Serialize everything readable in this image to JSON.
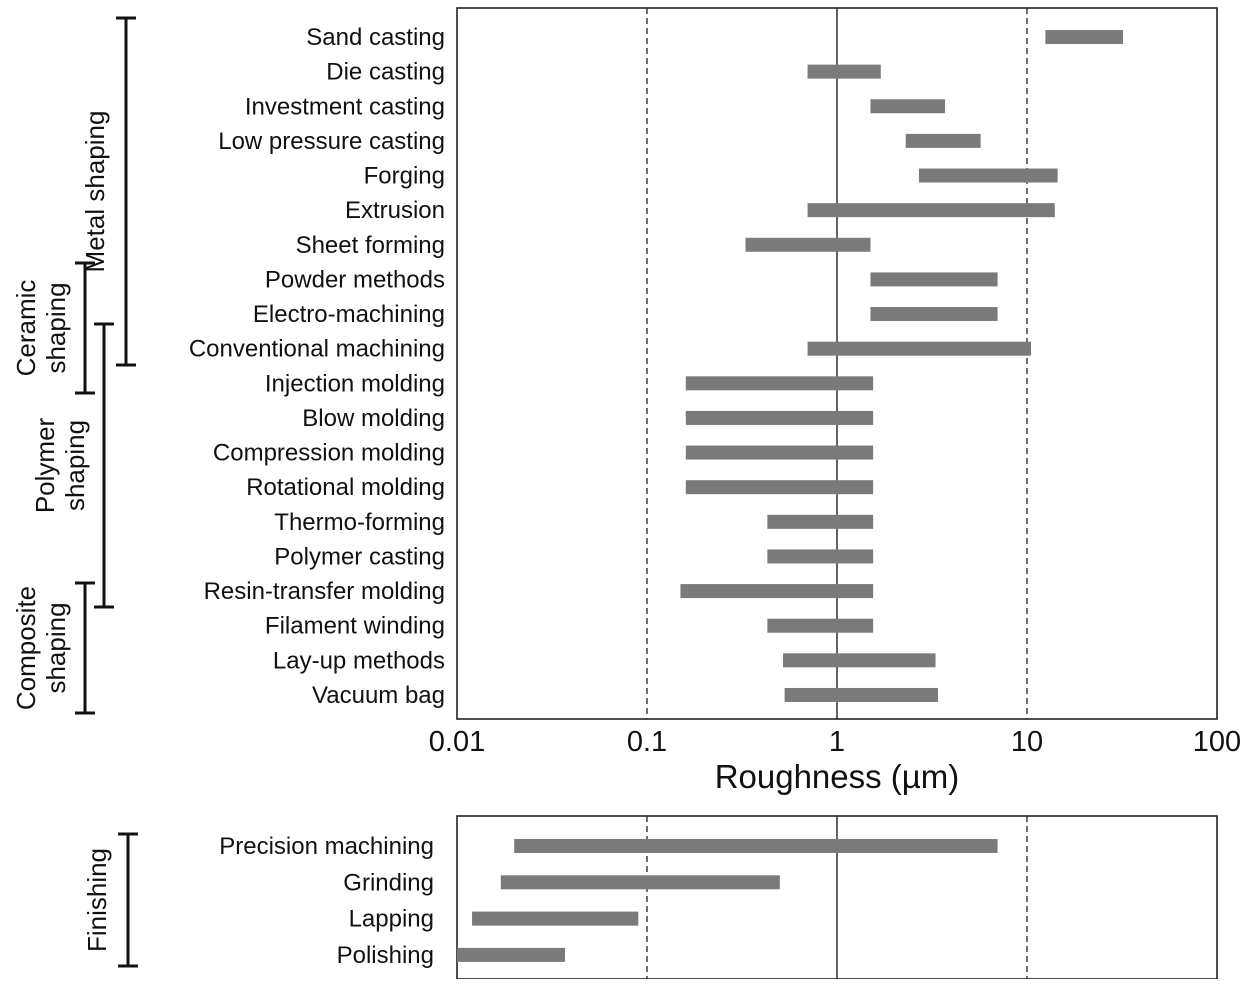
{
  "chart_data": [
    {
      "type": "bar",
      "orientation": "horizontal-range",
      "xscale": "log",
      "xlim": [
        0.01,
        100
      ],
      "xticks": [
        "0.01",
        "0.1",
        "1",
        "10",
        "100"
      ],
      "xlabel": "Roughness (µm)",
      "grid": "vertical gridlines at each decade",
      "categories": [
        "Sand casting",
        "Die casting",
        "Investment casting",
        "Low pressure casting",
        "Forging",
        "Extrusion",
        "Sheet forming",
        "Powder methods",
        "Electro-machining",
        "Conventional machining",
        "Injection molding",
        "Blow molding",
        "Compression molding",
        "Rotational molding",
        "Thermo-forming",
        "Polymer casting",
        "Resin-transfer molding",
        "Filament winding",
        "Lay-up methods",
        "Vacuum bag"
      ],
      "ranges": [
        [
          12.5,
          32
        ],
        [
          0.7,
          1.7
        ],
        [
          1.5,
          3.7
        ],
        [
          2.3,
          5.7
        ],
        [
          2.7,
          14.5
        ],
        [
          0.7,
          14
        ],
        [
          0.33,
          1.5
        ],
        [
          1.5,
          7
        ],
        [
          1.5,
          7
        ],
        [
          0.7,
          10.5
        ],
        [
          0.16,
          1.55
        ],
        [
          0.16,
          1.55
        ],
        [
          0.16,
          1.55
        ],
        [
          0.16,
          1.55
        ],
        [
          0.43,
          1.55
        ],
        [
          0.43,
          1.55
        ],
        [
          0.15,
          1.55
        ],
        [
          0.43,
          1.55
        ],
        [
          0.52,
          3.3
        ],
        [
          0.53,
          3.4
        ]
      ],
      "groups": [
        {
          "name": "Metal shaping",
          "from": 0,
          "to": 9
        },
        {
          "name": "Ceramic shaping",
          "from": 7,
          "to": 10
        },
        {
          "name": "Polymer shaping",
          "from": 9,
          "to": 16
        },
        {
          "name": "Composite shaping",
          "from": 16,
          "to": 19
        }
      ]
    },
    {
      "type": "bar",
      "orientation": "horizontal-range",
      "xscale": "log",
      "xlim": [
        0.01,
        100
      ],
      "categories": [
        "Precision machining",
        "Grinding",
        "Lapping",
        "Polishing"
      ],
      "ranges": [
        [
          0.02,
          7
        ],
        [
          0.017,
          0.5
        ],
        [
          0.012,
          0.09
        ],
        [
          0.01,
          0.037
        ]
      ],
      "groups": [
        {
          "name": "Finishing",
          "from": 0,
          "to": 3
        }
      ]
    }
  ]
}
